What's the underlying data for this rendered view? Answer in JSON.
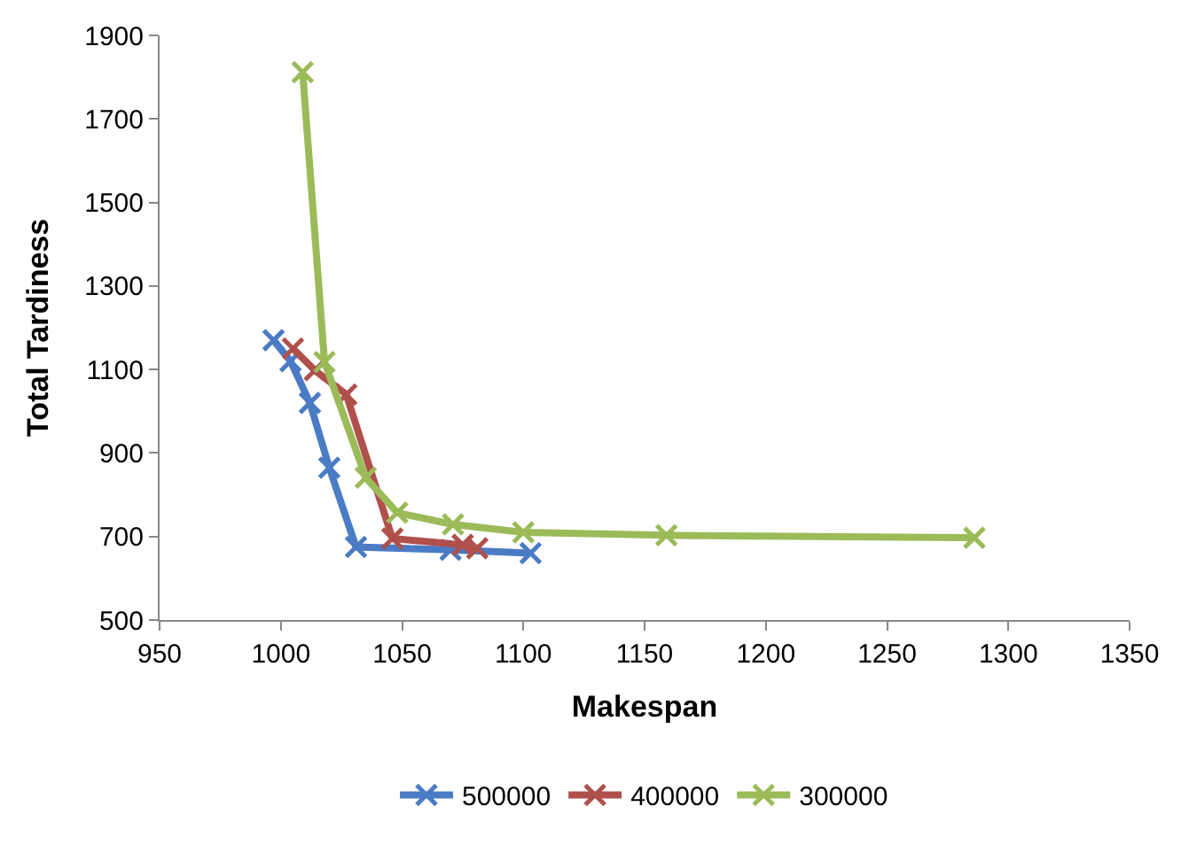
{
  "chart_data": {
    "type": "line",
    "xlabel": "Makespan",
    "ylabel": "Total Tardiness",
    "xlim": [
      950,
      1350
    ],
    "xticks": [
      950,
      1000,
      1050,
      1100,
      1150,
      1200,
      1250,
      1300,
      1350
    ],
    "ylim": [
      500,
      1900
    ],
    "yticks": [
      500,
      700,
      900,
      1100,
      1300,
      1500,
      1700,
      1900
    ],
    "legend": "bottom",
    "marker": "cross",
    "line_style": "solid",
    "series": [
      {
        "name": "500000",
        "color": "#4a7bc4",
        "x": [
          997,
          1004,
          1012,
          1020,
          1031,
          1070,
          1103
        ],
        "values": [
          1170,
          1120,
          1020,
          865,
          675,
          668,
          660
        ]
      },
      {
        "name": "400000",
        "color": "#b0504c",
        "x": [
          1005,
          1014,
          1027,
          1046,
          1075,
          1081
        ],
        "values": [
          1150,
          1098,
          1040,
          695,
          680,
          672
        ]
      },
      {
        "name": "300000",
        "color": "#9bbb59",
        "x": [
          1009,
          1018,
          1035,
          1048,
          1071,
          1100,
          1159,
          1286
        ],
        "values": [
          1812,
          1118,
          841,
          757,
          729,
          710,
          703,
          697
        ]
      }
    ]
  }
}
